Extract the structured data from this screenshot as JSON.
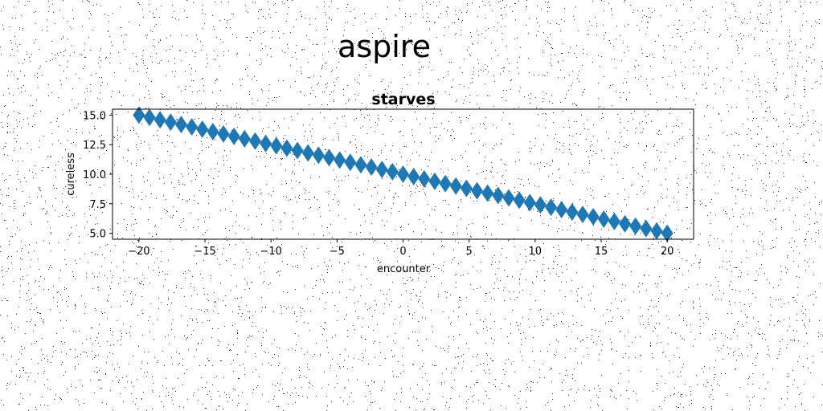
{
  "figure": {
    "suptitle": "aspire"
  },
  "chart_data": {
    "type": "scatter",
    "title": "starves",
    "xlabel": "encounter",
    "ylabel": "cureless",
    "marker": "diamond",
    "color": "#1f77b4",
    "xlim": [
      -22,
      22
    ],
    "ylim": [
      4.5,
      15.5
    ],
    "xticks": [
      -20,
      -15,
      -10,
      -5,
      0,
      5,
      10,
      15,
      20
    ],
    "xtick_labels": [
      "−20",
      "−15",
      "−10",
      "−5",
      "0",
      "5",
      "10",
      "15",
      "20"
    ],
    "yticks": [
      5.0,
      7.5,
      10.0,
      12.5,
      15.0
    ],
    "ytick_labels": [
      "5.0",
      "7.5",
      "10.0",
      "12.5",
      "15.0"
    ],
    "grid": false,
    "series": [
      {
        "x": [
          -20,
          -19.2,
          -18.4,
          -17.6,
          -16.8,
          -16,
          -15.2,
          -14.4,
          -13.6,
          -12.8,
          -12,
          -11.2,
          -10.4,
          -9.6,
          -8.8,
          -8,
          -7.2,
          -6.4,
          -5.6,
          -4.8,
          -4,
          -3.2,
          -2.4,
          -1.6,
          -0.8,
          0,
          0.8,
          1.6,
          2.4,
          3.2,
          4,
          4.8,
          5.6,
          6.4,
          7.2,
          8,
          8.8,
          9.6,
          10.4,
          11.2,
          12,
          12.8,
          13.6,
          14.4,
          15.2,
          16,
          16.8,
          17.6,
          18.4,
          19.2,
          20
        ],
        "y": [
          15,
          14.8,
          14.6,
          14.4,
          14.2,
          14,
          13.8,
          13.6,
          13.4,
          13.2,
          13,
          12.8,
          12.6,
          12.4,
          12.2,
          12,
          11.8,
          11.6,
          11.4,
          11.2,
          11,
          10.8,
          10.6,
          10.4,
          10.2,
          10,
          9.8,
          9.6,
          9.4,
          9.2,
          9,
          8.8,
          8.6,
          8.4,
          8.2,
          8,
          7.8,
          7.6,
          7.4,
          7.2,
          7,
          6.8,
          6.6,
          6.4,
          6.2,
          6,
          5.8,
          5.6,
          5.4,
          5.2,
          5
        ]
      }
    ]
  }
}
